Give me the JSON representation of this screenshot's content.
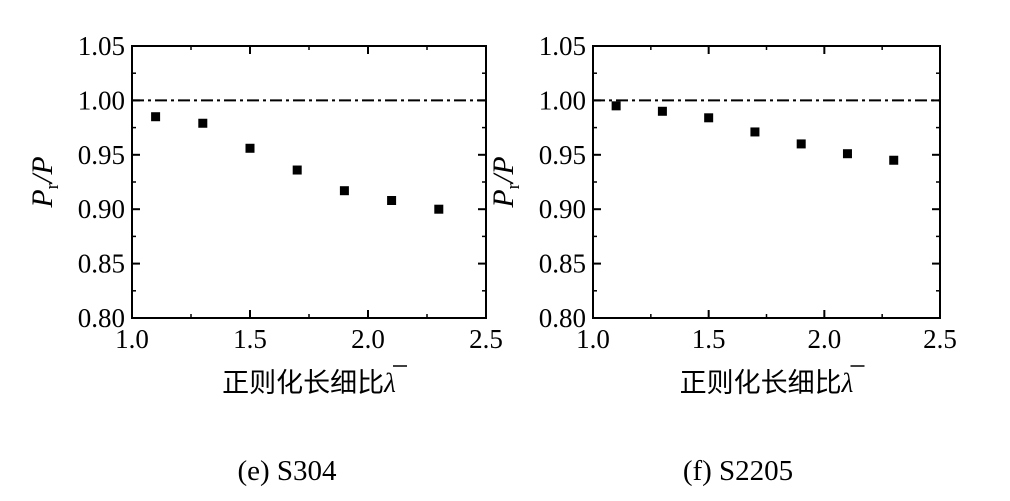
{
  "panels": [
    {
      "caption": "(e) S304",
      "chart_data": {
        "type": "scatter",
        "title": "",
        "xlabel": "正则化长细比λ̄",
        "ylabel": "Pr/P",
        "xlim": [
          1.0,
          2.5
        ],
        "ylim": [
          0.8,
          1.05
        ],
        "x_ticks": [
          "1.0",
          "1.5",
          "2.0",
          "2.5"
        ],
        "y_ticks": [
          "0.80",
          "0.85",
          "0.90",
          "0.95",
          "1.00",
          "1.05"
        ],
        "reference_line": {
          "y": 1.0,
          "style": "dash-dot"
        },
        "series": [
          {
            "marker": "square",
            "color": "#000000",
            "x": [
              1.1,
              1.3,
              1.5,
              1.7,
              1.9,
              2.1,
              2.3
            ],
            "y": [
              0.985,
              0.979,
              0.956,
              0.936,
              0.917,
              0.908,
              0.9
            ]
          }
        ]
      }
    },
    {
      "caption": "(f) S2205",
      "chart_data": {
        "type": "scatter",
        "title": "",
        "xlabel": "正则化长细比λ̄",
        "ylabel": "Pr/P",
        "xlim": [
          1.0,
          2.5
        ],
        "ylim": [
          0.8,
          1.05
        ],
        "x_ticks": [
          "1.0",
          "1.5",
          "2.0",
          "2.5"
        ],
        "y_ticks": [
          "0.80",
          "0.85",
          "0.90",
          "0.95",
          "1.00",
          "1.05"
        ],
        "reference_line": {
          "y": 1.0,
          "style": "dash-dot"
        },
        "series": [
          {
            "marker": "square",
            "color": "#000000",
            "x": [
              1.1,
              1.3,
              1.5,
              1.7,
              1.9,
              2.1,
              2.3
            ],
            "y": [
              0.995,
              0.99,
              0.984,
              0.971,
              0.96,
              0.951,
              0.945
            ]
          }
        ]
      }
    }
  ],
  "labels": {
    "ylabel_main": "P",
    "ylabel_sub": "r",
    "ylabel_tail": "/P",
    "xlabel_cn": "正则化长细比",
    "xlabel_symbol": "λ"
  }
}
